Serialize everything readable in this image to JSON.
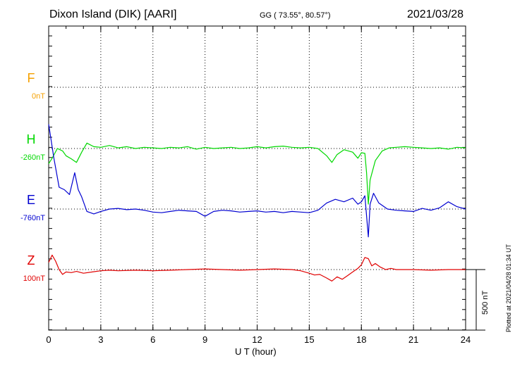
{
  "header": {
    "station": "Dixon Island (DIK)  [AARI]",
    "coords": "GG ( 73.55°,  80.57°)",
    "date": "2021/03/28"
  },
  "footer": {
    "plotted": "Plotted at 2021/04/28 01:34 UT"
  },
  "colors": {
    "F": "#f5a000",
    "H": "#00d800",
    "E": "#0000d0",
    "Z": "#e00000"
  },
  "chart_data": {
    "type": "line",
    "title": "Dixon Island (DIK)  [AARI]",
    "xlabel": "U T (hour)",
    "ylabel": "",
    "xlim": [
      0,
      24
    ],
    "x_ticks": [
      "0",
      "3",
      "6",
      "9",
      "12",
      "15",
      "18",
      "21",
      "24"
    ],
    "scale_bar": "500 nT",
    "grid": true,
    "series": [
      {
        "name": "F",
        "baseline": "0nT",
        "x": [],
        "y": []
      },
      {
        "name": "H",
        "baseline": "-260nT",
        "x": [
          0,
          0.2,
          0.5,
          0.8,
          1.0,
          1.3,
          1.6,
          1.9,
          2.2,
          2.6,
          3.0,
          3.5,
          4.0,
          4.5,
          5.0,
          5.5,
          6.0,
          6.5,
          7.0,
          7.5,
          8.0,
          8.5,
          9.0,
          9.5,
          10.0,
          10.5,
          11.0,
          11.5,
          12.0,
          12.5,
          13.0,
          13.5,
          14.0,
          14.5,
          15.0,
          15.5,
          16.0,
          16.3,
          16.6,
          17.0,
          17.5,
          17.8,
          18.0,
          18.2,
          18.3,
          18.4,
          18.5,
          18.8,
          19.2,
          19.6,
          20.0,
          20.5,
          21.0,
          21.5,
          22.0,
          22.5,
          23.0,
          23.5,
          24.0
        ],
        "y": [
          -125,
          -80,
          0,
          -20,
          -60,
          -85,
          -115,
          -30,
          45,
          15,
          10,
          25,
          5,
          15,
          0,
          10,
          5,
          0,
          10,
          5,
          15,
          -5,
          10,
          0,
          5,
          10,
          0,
          5,
          15,
          5,
          15,
          20,
          10,
          5,
          10,
          0,
          -60,
          -115,
          -50,
          -10,
          -30,
          -80,
          -35,
          -40,
          -200,
          -460,
          -260,
          -100,
          -20,
          5,
          10,
          15,
          10,
          5,
          0,
          5,
          -5,
          10,
          5
        ]
      },
      {
        "name": "E",
        "baseline": "-760nT",
        "x": [
          0,
          0.3,
          0.6,
          0.9,
          1.2,
          1.5,
          1.7,
          1.9,
          2.2,
          2.6,
          3.0,
          3.5,
          4.0,
          4.5,
          5.0,
          5.5,
          6.0,
          6.5,
          7.0,
          7.5,
          8.0,
          8.5,
          9.0,
          9.5,
          10.0,
          10.5,
          11.0,
          11.5,
          12.0,
          12.5,
          13.0,
          13.5,
          14.0,
          14.5,
          15.0,
          15.5,
          16.0,
          16.5,
          17.0,
          17.5,
          17.8,
          18.0,
          18.2,
          18.4,
          18.5,
          18.7,
          19.0,
          19.5,
          20.0,
          20.5,
          21.0,
          21.5,
          22.0,
          22.5,
          23.0,
          23.5,
          24.0
        ],
        "y": [
          700,
          420,
          180,
          160,
          120,
          300,
          160,
          100,
          -20,
          -40,
          -20,
          0,
          5,
          -5,
          0,
          -10,
          -25,
          -30,
          -20,
          -10,
          -15,
          -20,
          -60,
          -20,
          -10,
          -15,
          -25,
          -20,
          -15,
          -25,
          -20,
          -30,
          -20,
          -25,
          -30,
          -10,
          50,
          80,
          60,
          90,
          40,
          60,
          110,
          -230,
          40,
          130,
          50,
          0,
          -10,
          -15,
          -20,
          5,
          -10,
          10,
          60,
          20,
          0
        ]
      },
      {
        "name": "Z",
        "baseline": "100nT",
        "x": [
          0,
          0.2,
          0.4,
          0.6,
          0.8,
          1.0,
          1.3,
          1.6,
          2.0,
          2.5,
          3.0,
          3.5,
          4.0,
          5.0,
          6.0,
          7.0,
          8.0,
          9.0,
          10.0,
          11.0,
          12.0,
          13.0,
          14.0,
          14.5,
          15.0,
          15.3,
          15.6,
          16.0,
          16.3,
          16.6,
          16.9,
          17.2,
          17.5,
          17.8,
          18.0,
          18.2,
          18.4,
          18.6,
          18.8,
          19.1,
          19.4,
          19.7,
          20.0,
          21.0,
          22.0,
          23.0,
          24.0
        ],
        "y": [
          60,
          120,
          70,
          0,
          -40,
          -20,
          -25,
          -15,
          -30,
          -20,
          -10,
          -5,
          -10,
          -5,
          -10,
          -5,
          0,
          5,
          0,
          -5,
          0,
          5,
          0,
          -10,
          -30,
          -45,
          -40,
          -70,
          -95,
          -60,
          -80,
          -50,
          -20,
          10,
          40,
          100,
          90,
          30,
          50,
          20,
          0,
          10,
          0,
          0,
          -5,
          0,
          0
        ]
      }
    ]
  }
}
